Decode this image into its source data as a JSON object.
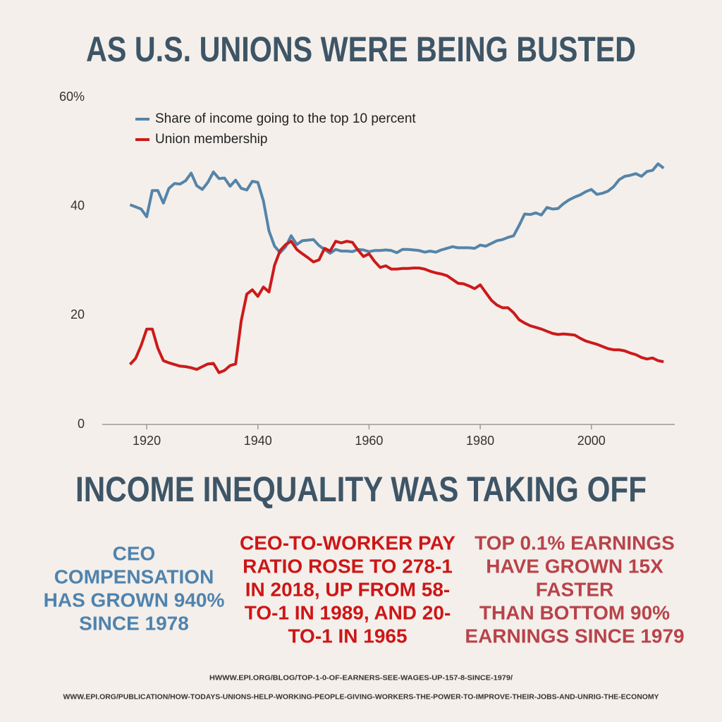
{
  "chart_data": {
    "type": "line",
    "title": "AS U.S. UNIONS WERE BEING BUSTED",
    "x": [
      1917,
      1918,
      1919,
      1920,
      1921,
      1922,
      1923,
      1924,
      1925,
      1926,
      1927,
      1928,
      1929,
      1930,
      1931,
      1932,
      1933,
      1934,
      1935,
      1936,
      1937,
      1938,
      1939,
      1940,
      1941,
      1942,
      1943,
      1944,
      1945,
      1946,
      1947,
      1948,
      1949,
      1950,
      1951,
      1952,
      1953,
      1954,
      1955,
      1956,
      1957,
      1958,
      1959,
      1960,
      1961,
      1962,
      1963,
      1964,
      1965,
      1966,
      1967,
      1968,
      1969,
      1970,
      1971,
      1972,
      1973,
      1974,
      1975,
      1976,
      1977,
      1978,
      1979,
      1980,
      1981,
      1982,
      1983,
      1984,
      1985,
      1986,
      1987,
      1988,
      1989,
      1990,
      1991,
      1992,
      1993,
      1994,
      1995,
      1996,
      1997,
      1998,
      1999,
      2000,
      2001,
      2002,
      2003,
      2004,
      2005,
      2006,
      2007,
      2008,
      2009,
      2010,
      2011,
      2012,
      2013
    ],
    "series": [
      {
        "name": "Share of income going to the top 10 percent",
        "color": "#5584a8",
        "values": [
          40.3,
          39.9,
          39.5,
          38.1,
          42.9,
          42.9,
          40.6,
          43.3,
          44.2,
          44.1,
          44.7,
          46.1,
          43.8,
          43.1,
          44.4,
          46.3,
          45.1,
          45.2,
          43.7,
          44.8,
          43.3,
          43.0,
          44.6,
          44.4,
          41.0,
          35.5,
          32.7,
          31.5,
          32.6,
          34.6,
          33.0,
          33.7,
          33.8,
          33.9,
          32.8,
          32.1,
          31.4,
          32.1,
          31.8,
          31.8,
          31.7,
          32.1,
          32.0,
          31.7,
          31.9,
          31.9,
          32.0,
          31.9,
          31.5,
          32.1,
          32.1,
          32.0,
          31.9,
          31.6,
          31.8,
          31.6,
          32.0,
          32.3,
          32.6,
          32.4,
          32.4,
          32.4,
          32.3,
          32.9,
          32.7,
          33.2,
          33.7,
          33.9,
          34.3,
          34.6,
          36.5,
          38.6,
          38.5,
          38.8,
          38.4,
          39.8,
          39.5,
          39.6,
          40.5,
          41.2,
          41.7,
          42.1,
          42.7,
          43.1,
          42.2,
          42.4,
          42.8,
          43.6,
          44.9,
          45.5,
          45.7,
          46.0,
          45.5,
          46.4,
          46.6,
          47.8,
          47.0
        ]
      },
      {
        "name": "Union membership",
        "color": "#cc1a1a",
        "values": [
          11.0,
          12.1,
          14.5,
          17.5,
          17.5,
          14.0,
          11.7,
          11.3,
          11.0,
          10.7,
          10.6,
          10.4,
          10.1,
          10.6,
          11.1,
          11.2,
          9.5,
          9.9,
          10.8,
          11.1,
          19.0,
          23.9,
          24.7,
          23.5,
          25.2,
          24.3,
          29.2,
          31.9,
          33.0,
          33.6,
          32.1,
          31.3,
          30.6,
          29.8,
          30.2,
          32.3,
          31.8,
          33.6,
          33.3,
          33.6,
          33.4,
          32.0,
          30.8,
          31.3,
          29.9,
          28.8,
          29.1,
          28.5,
          28.5,
          28.6,
          28.6,
          28.7,
          28.7,
          28.5,
          28.1,
          27.8,
          27.6,
          27.3,
          26.6,
          25.9,
          25.8,
          25.4,
          24.9,
          25.6,
          24.2,
          22.8,
          21.9,
          21.4,
          21.4,
          20.5,
          19.2,
          18.6,
          18.1,
          17.8,
          17.5,
          17.1,
          16.7,
          16.5,
          16.6,
          16.5,
          16.4,
          15.8,
          15.3,
          15.0,
          14.7,
          14.3,
          13.9,
          13.7,
          13.7,
          13.5,
          13.1,
          12.8,
          12.3,
          12.0,
          12.2,
          11.7,
          11.5
        ]
      }
    ],
    "xlim": [
      1912,
      2015
    ],
    "xticks": [
      1920,
      1940,
      1960,
      1980,
      2000
    ],
    "ylim": [
      0,
      60
    ],
    "yticks": [
      0,
      20,
      40,
      {
        "value": 60,
        "label": "60%"
      }
    ],
    "legend": "top-left"
  },
  "subheadline": "INCOME INEQUALITY WAS TAKING OFF",
  "facts": [
    {
      "color": "#4f83ad",
      "lines": [
        "CEO",
        "COMPENSATION",
        "HAS GROWN 940%",
        "SINCE 1978"
      ]
    },
    {
      "color": "#cc1616",
      "lines": [
        "CEO-TO-WORKER PAY",
        "RATIO ROSE TO 278-1",
        "IN 2018, UP FROM 58-",
        "TO-1 IN 1989, AND 20-",
        "TO-1 IN 1965"
      ]
    },
    {
      "color": "#b8434a",
      "lines": [
        "TOP 0.1% EARNINGS",
        "HAVE GROWN 15X",
        "FASTER",
        "THAN BOTTOM 90%",
        "EARNINGS SINCE 1979"
      ]
    }
  ],
  "sources": [
    "HWWW.EPI.ORG/BLOG/TOP-1-0-OF-EARNERS-SEE-WAGES-UP-157-8-SINCE-1979/",
    "WWW.EPI.ORG/PUBLICATION/HOW-TODAYS-UNIONS-HELP-WORKING-PEOPLE-GIVING-WORKERS-THE-POWER-TO-IMPROVE-THEIR-JOBS-AND-UNRIG-THE-ECONOMY"
  ]
}
